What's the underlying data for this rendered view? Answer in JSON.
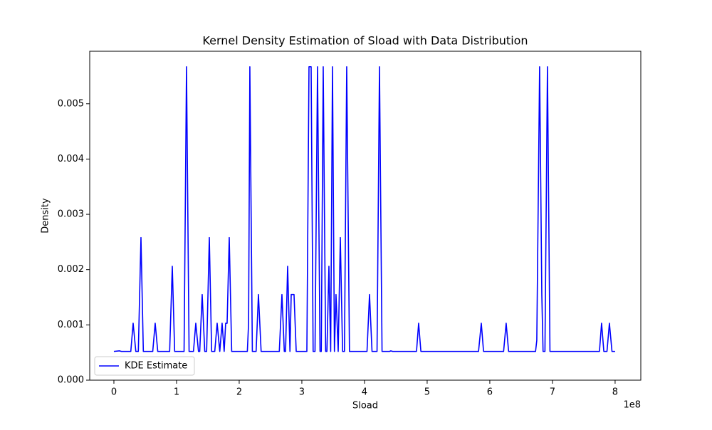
{
  "chart_data": {
    "type": "line",
    "title": "Kernel Density Estimation of Sload with Data Distribution",
    "x_label": "Sload",
    "y_label": "Density",
    "x_offset_label": "1e8",
    "xlim": [
      -0.386,
      8.41
    ],
    "ylim": [
      0,
      0.00595
    ],
    "xticks": [
      0,
      1,
      2,
      3,
      4,
      5,
      6,
      7,
      8
    ],
    "yticks": [
      {
        "value": 0,
        "label": "0.000"
      },
      0.001,
      0.002,
      0.003,
      0.004,
      0.005
    ],
    "legend": "lower left",
    "series": [
      {
        "name": "KDE Estimate",
        "color": "#0000ff",
        "x": [
          0,
          0.09,
          0.12,
          0.27,
          0.307,
          0.35,
          0.39,
          0.432,
          0.47,
          0.62,
          0.659,
          0.7,
          0.89,
          0.932,
          0.97,
          1.12,
          1.159,
          1.2,
          1.27,
          1.307,
          1.35,
          1.37,
          1.409,
          1.45,
          1.48,
          1.523,
          1.56,
          1.61,
          1.648,
          1.69,
          1.727,
          1.76,
          1.784,
          1.807,
          1.841,
          1.88,
          2.13,
          2.15,
          2.17,
          2.21,
          2.27,
          2.307,
          2.35,
          2.64,
          2.682,
          2.72,
          2.74,
          2.773,
          2.81,
          2.83,
          2.875,
          2.91,
          3.08,
          3.114,
          3.148,
          3.18,
          3.21,
          3.25,
          3.29,
          3.31,
          3.341,
          3.38,
          3.4,
          3.432,
          3.46,
          3.489,
          3.52,
          3.545,
          3.58,
          3.614,
          3.65,
          3.68,
          3.716,
          3.76,
          4.04,
          4.08,
          4.12,
          4.2,
          4.239,
          4.28,
          4.4,
          4.42,
          4.45,
          4.83,
          4.864,
          4.9,
          5.82,
          5.864,
          5.9,
          6.22,
          6.261,
          6.3,
          6.73,
          6.75,
          6.795,
          6.83,
          6.85,
          6.88,
          6.92,
          6.96,
          7.75,
          7.784,
          7.82,
          7.87,
          7.909,
          7.95,
          8.0
        ],
        "values": [
          0.00052,
          0.00053,
          0.00052,
          0.00052,
          0.00103,
          0.00052,
          0.00052,
          0.00258,
          0.00052,
          0.00052,
          0.00103,
          0.00052,
          0.00052,
          0.00206,
          0.00052,
          0.00052,
          0.00567,
          0.00052,
          0.00052,
          0.00103,
          0.00052,
          0.00052,
          0.00155,
          0.00052,
          0.00052,
          0.00258,
          0.00052,
          0.00052,
          0.00103,
          0.00052,
          0.00103,
          0.00052,
          0.00103,
          0.00103,
          0.00258,
          0.00052,
          0.00052,
          0.00103,
          0.00567,
          0.00052,
          0.00052,
          0.00155,
          0.00052,
          0.00052,
          0.00155,
          0.00052,
          0.00052,
          0.00206,
          0.00052,
          0.00155,
          0.00155,
          0.00052,
          0.00052,
          0.00567,
          0.00567,
          0.00052,
          0.00052,
          0.00567,
          0.00052,
          0.00052,
          0.00567,
          0.00052,
          0.00052,
          0.00206,
          0.00052,
          0.00567,
          0.00052,
          0.00155,
          0.00052,
          0.00258,
          0.00052,
          0.00052,
          0.00567,
          0.00052,
          0.00052,
          0.00155,
          0.00052,
          0.00052,
          0.00567,
          0.00052,
          0.00052,
          0.00053,
          0.00052,
          0.00052,
          0.00103,
          0.00052,
          0.00052,
          0.00103,
          0.00052,
          0.00052,
          0.00103,
          0.00052,
          0.00052,
          0.00072,
          0.00567,
          0.00155,
          0.00052,
          0.00052,
          0.00567,
          0.00052,
          0.00052,
          0.00103,
          0.00052,
          0.00052,
          0.00103,
          0.00052,
          0.00052
        ]
      }
    ]
  }
}
